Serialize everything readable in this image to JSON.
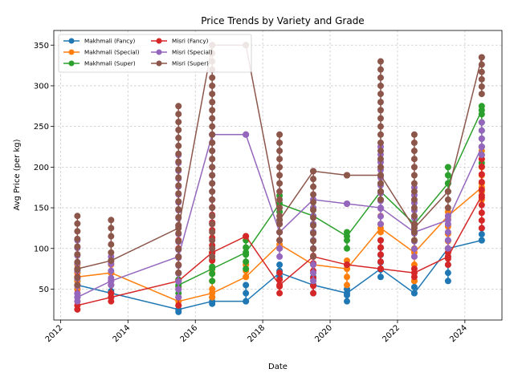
{
  "chart_data": {
    "type": "line",
    "title": "Price Trends by Variety and Grade",
    "xlabel": "Date",
    "ylabel": "Avg Price (per kg)",
    "x_ticks": [
      "2012",
      "2014",
      "2016",
      "2018",
      "2020",
      "2022",
      "2024"
    ],
    "y_ticks": [
      50,
      100,
      150,
      200,
      250,
      300,
      350
    ],
    "xlim": [
      2011.8,
      2025.1
    ],
    "ylim": [
      12,
      368
    ],
    "grid": true,
    "legend_position": "upper left",
    "series": [
      {
        "name": "Makhmali (Fancy)",
        "color": "#1f77b4",
        "x": [
          2012.5,
          2013.5,
          2015.5,
          2016.5,
          2017.5,
          2018.5,
          2019.5,
          2020.5,
          2021.5,
          2022.5,
          2023.5,
          2024.5
        ],
        "y": [
          55,
          45,
          25,
          35,
          35,
          70,
          55,
          45,
          75,
          45,
          100,
          110
        ],
        "min": [
          40,
          40,
          22,
          32,
          35,
          65,
          45,
          35,
          65,
          45,
          60,
          110
        ],
        "max": [
          70,
          55,
          30,
          40,
          55,
          80,
          65,
          50,
          110,
          60,
          110,
          125
        ]
      },
      {
        "name": "Makhmali (Special)",
        "color": "#ff7f0e",
        "x": [
          2012.5,
          2013.5,
          2015.5,
          2016.5,
          2017.5,
          2018.5,
          2019.5,
          2020.5,
          2021.5,
          2022.5,
          2023.5,
          2024.5
        ],
        "y": [
          65,
          70,
          35,
          45,
          65,
          105,
          80,
          75,
          125,
          95,
          140,
          175
        ],
        "min": [
          50,
          60,
          30,
          40,
          65,
          100,
          70,
          55,
          120,
          60,
          100,
          160
        ],
        "max": [
          80,
          80,
          40,
          70,
          80,
          110,
          90,
          85,
          140,
          110,
          145,
          220
        ]
      },
      {
        "name": "Makhmali (Super)",
        "color": "#2ca02c",
        "x": [
          2015.5,
          2016.5,
          2017.5,
          2018.5,
          2019.5,
          2020.5,
          2021.5,
          2022.5,
          2023.5,
          2024.5
        ],
        "y": [
          55,
          75,
          95,
          155,
          140,
          115,
          170,
          130,
          180,
          270
        ],
        "min": [
          45,
          60,
          75,
          135,
          100,
          100,
          160,
          120,
          170,
          205
        ],
        "max": [
          70,
          95,
          110,
          165,
          150,
          120,
          180,
          130,
          200,
          275
        ]
      },
      {
        "name": "Misri (Fancy)",
        "color": "#d62728",
        "x": [
          2012.5,
          2013.5,
          2015.5,
          2016.5,
          2017.5,
          2018.5,
          2019.5,
          2020.5,
          2021.5,
          2022.5,
          2023.5,
          2024.5
        ],
        "y": [
          30,
          40,
          60,
          95,
          115,
          55,
          90,
          80,
          75,
          70,
          90,
          165
        ],
        "min": [
          25,
          35,
          30,
          85,
          115,
          45,
          45,
          80,
          75,
          65,
          80,
          125
        ],
        "max": [
          75,
          55,
          110,
          160,
          115,
          70,
          100,
          80,
          110,
          75,
          95,
          210
        ]
      },
      {
        "name": "Misri (Special)",
        "color": "#9467bd",
        "x": [
          2012.5,
          2013.5,
          2015.5,
          2016.5,
          2017.5,
          2018.5,
          2019.5,
          2020.5,
          2021.5,
          2022.5,
          2023.5,
          2024.5
        ],
        "y": [
          40,
          60,
          90,
          240,
          240,
          120,
          160,
          155,
          150,
          120,
          135,
          225
        ],
        "min": [
          35,
          55,
          40,
          130,
          240,
          90,
          60,
          155,
          130,
          90,
          100,
          215
        ],
        "max": [
          110,
          90,
          215,
          240,
          240,
          130,
          160,
          155,
          225,
          175,
          140,
          255
        ]
      },
      {
        "name": "Misri (Super)",
        "color": "#8c564b",
        "x": [
          2012.5,
          2013.5,
          2015.5,
          2016.5,
          2017.5,
          2018.5,
          2019.5,
          2020.5,
          2021.5,
          2022.5,
          2023.5,
          2024.5
        ],
        "y": [
          75,
          85,
          125,
          350,
          350,
          135,
          195,
          190,
          190,
          125,
          170,
          335
        ],
        "min": [
          55,
          85,
          70,
          90,
          350,
          110,
          90,
          190,
          160,
          110,
          150,
          290
        ],
        "max": [
          140,
          135,
          275,
          350,
          350,
          240,
          195,
          190,
          330,
          240,
          170,
          335
        ]
      }
    ]
  }
}
